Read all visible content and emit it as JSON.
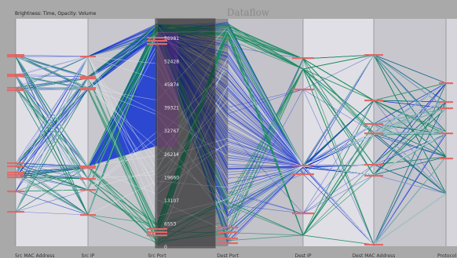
{
  "chart_data": {
    "type": "parallel-coordinates",
    "title": "Dataflow",
    "legend": "Brightness: Time, Opacity: Volume",
    "axes": [
      {
        "name": "Src MAC Address"
      },
      {
        "name": "Src IP"
      },
      {
        "name": "Src Port",
        "ticks": [
          0,
          6553,
          13107,
          19660,
          26214,
          32767,
          39321,
          45874,
          52428,
          58981
        ]
      },
      {
        "name": "Dest Port"
      },
      {
        "name": "Dest IP"
      },
      {
        "name": "Dest MAC Address"
      },
      {
        "name": "Protocol"
      }
    ],
    "colors": {
      "background": "#a9a9a9",
      "panel_light": "#e0dfe5",
      "panel_mid": "#c8c7ce",
      "brush": "#0d0d10",
      "line_blue": "#1030d0",
      "line_green": "#1a8a60",
      "marker": "#e06a6a"
    }
  }
}
